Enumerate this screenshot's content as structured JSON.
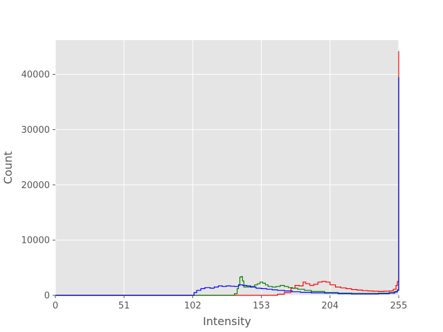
{
  "chart_data": {
    "type": "line",
    "title": "",
    "xlabel": "Intensity",
    "ylabel": "Count",
    "xlim": [
      0,
      255
    ],
    "ylim": [
      0,
      46200
    ],
    "xticks": [
      0,
      51,
      102,
      153,
      204,
      255
    ],
    "yticks": [
      0,
      10000,
      20000,
      30000,
      40000
    ],
    "grid": true,
    "background": "#e5e5e5",
    "grid_color": "#ffffff",
    "series": [
      {
        "color": "#ff0000",
        "points": [
          [
            0,
            0
          ],
          [
            160,
            0
          ],
          [
            165,
            200
          ],
          [
            170,
            500
          ],
          [
            175,
            1300
          ],
          [
            178,
            1800
          ],
          [
            181,
            1700
          ],
          [
            184,
            2400
          ],
          [
            186,
            2100
          ],
          [
            189,
            1800
          ],
          [
            192,
            2000
          ],
          [
            195,
            2400
          ],
          [
            198,
            2500
          ],
          [
            201,
            2400
          ],
          [
            204,
            1900
          ],
          [
            208,
            1500
          ],
          [
            212,
            1350
          ],
          [
            216,
            1200
          ],
          [
            220,
            1050
          ],
          [
            224,
            950
          ],
          [
            228,
            850
          ],
          [
            232,
            800
          ],
          [
            236,
            750
          ],
          [
            240,
            700
          ],
          [
            244,
            750
          ],
          [
            248,
            800
          ],
          [
            251,
            1100
          ],
          [
            253,
            1800
          ],
          [
            254,
            2500
          ],
          [
            255,
            44200
          ]
        ]
      },
      {
        "color": "#008000",
        "points": [
          [
            0,
            0
          ],
          [
            130,
            0
          ],
          [
            133,
            300
          ],
          [
            135,
            1200
          ],
          [
            136,
            1800
          ],
          [
            137,
            3300
          ],
          [
            138,
            3400
          ],
          [
            139,
            2600
          ],
          [
            140,
            1500
          ],
          [
            142,
            1500
          ],
          [
            145,
            1600
          ],
          [
            148,
            1900
          ],
          [
            150,
            2100
          ],
          [
            152,
            2400
          ],
          [
            154,
            2200
          ],
          [
            156,
            1900
          ],
          [
            158,
            1600
          ],
          [
            161,
            1500
          ],
          [
            164,
            1600
          ],
          [
            167,
            1800
          ],
          [
            170,
            1600
          ],
          [
            173,
            1400
          ],
          [
            176,
            1300
          ],
          [
            180,
            1100
          ],
          [
            185,
            900
          ],
          [
            190,
            700
          ],
          [
            200,
            500
          ],
          [
            210,
            400
          ],
          [
            220,
            350
          ],
          [
            230,
            350
          ],
          [
            240,
            400
          ],
          [
            248,
            500
          ],
          [
            252,
            700
          ],
          [
            254,
            1000
          ],
          [
            255,
            39500
          ]
        ]
      },
      {
        "color": "#0000ff",
        "points": [
          [
            0,
            0
          ],
          [
            102,
            0
          ],
          [
            103,
            500
          ],
          [
            105,
            900
          ],
          [
            108,
            1200
          ],
          [
            111,
            1400
          ],
          [
            115,
            1300
          ],
          [
            118,
            1500
          ],
          [
            121,
            1700
          ],
          [
            124,
            1600
          ],
          [
            127,
            1700
          ],
          [
            130,
            1650
          ],
          [
            133,
            1600
          ],
          [
            136,
            1900
          ],
          [
            139,
            1800
          ],
          [
            142,
            1700
          ],
          [
            145,
            1500
          ],
          [
            149,
            1300
          ],
          [
            153,
            1200
          ],
          [
            157,
            1100
          ],
          [
            161,
            1000
          ],
          [
            165,
            900
          ],
          [
            170,
            800
          ],
          [
            176,
            650
          ],
          [
            182,
            550
          ],
          [
            190,
            450
          ],
          [
            200,
            400
          ],
          [
            210,
            300
          ],
          [
            220,
            250
          ],
          [
            230,
            250
          ],
          [
            240,
            300
          ],
          [
            248,
            400
          ],
          [
            252,
            600
          ],
          [
            254,
            900
          ],
          [
            255,
            39500
          ]
        ]
      }
    ]
  }
}
